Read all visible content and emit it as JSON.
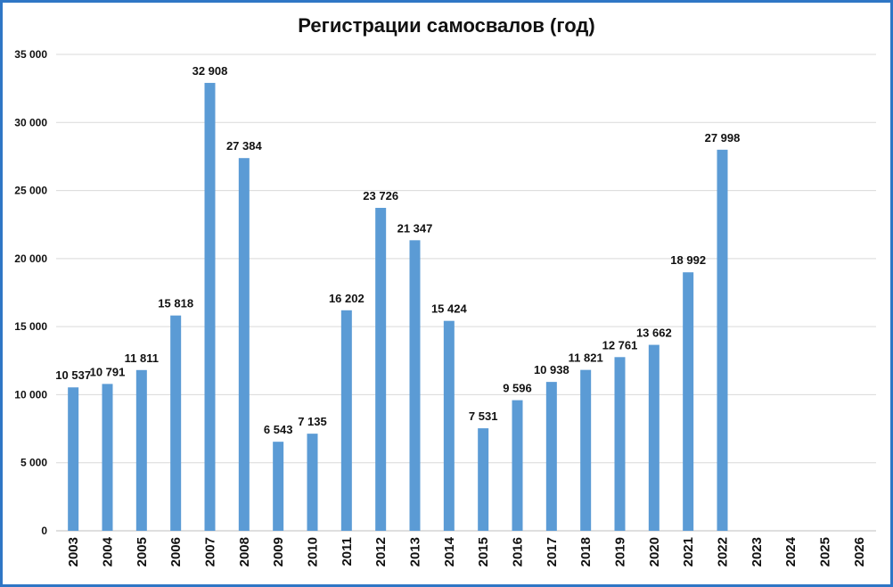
{
  "chart_data": {
    "type": "bar",
    "title": "Регистрации самосвалов (год)",
    "xlabel": "",
    "ylabel": "",
    "ylim": [
      0,
      35000
    ],
    "grid": true,
    "legend": "none",
    "bar_color": "#5b9bd5",
    "yticks": [
      0,
      5000,
      10000,
      15000,
      20000,
      25000,
      30000,
      35000
    ],
    "ytick_labels": [
      "0",
      "5 000",
      "10 000",
      "15 000",
      "20 000",
      "25 000",
      "30 000",
      "35 000"
    ],
    "categories": [
      "2003",
      "2004",
      "2005",
      "2006",
      "2007",
      "2008",
      "2009",
      "2010",
      "2011",
      "2012",
      "2013",
      "2014",
      "2015",
      "2016",
      "2017",
      "2018",
      "2019",
      "2020",
      "2021",
      "2022",
      "2023",
      "2024",
      "2025",
      "2026"
    ],
    "values": [
      10537,
      10791,
      11811,
      15818,
      32908,
      27384,
      6543,
      7135,
      16202,
      23726,
      21347,
      15424,
      7531,
      9596,
      10938,
      11821,
      12761,
      13662,
      18992,
      27998,
      null,
      null,
      null,
      null
    ],
    "data_labels": [
      "10 537",
      "10 791",
      "11 811",
      "15 818",
      "32 908",
      "27 384",
      "6 543",
      "7 135",
      "16 202",
      "23 726",
      "21 347",
      "15 424",
      "7 531",
      "9 596",
      "10 938",
      "11 821",
      "12 761",
      "13 662",
      "18 992",
      "27 998",
      "",
      "",
      "",
      ""
    ]
  }
}
